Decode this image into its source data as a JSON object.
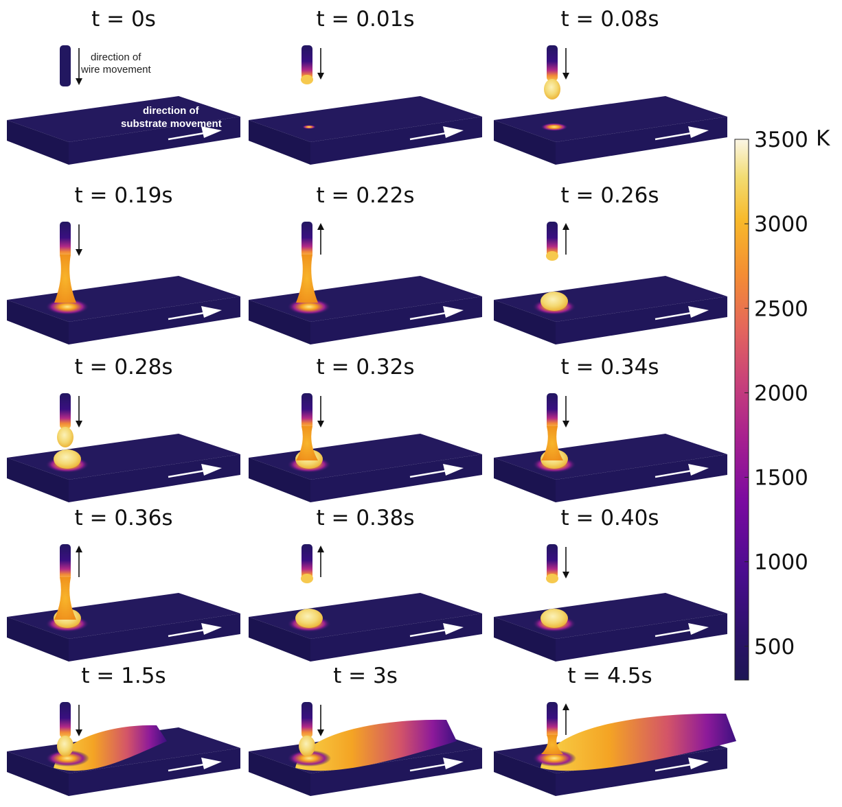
{
  "figure": {
    "colorbar": {
      "colormap": "plasma",
      "min": 300,
      "max": 3500,
      "ticks": [
        {
          "value": 3500,
          "label": "3500"
        },
        {
          "value": 3000,
          "label": "3000"
        },
        {
          "value": 2500,
          "label": "2500"
        },
        {
          "value": 2000,
          "label": "2000"
        },
        {
          "value": 1500,
          "label": "1500"
        },
        {
          "value": 1000,
          "label": "1000"
        },
        {
          "value": 500,
          "label": "500"
        }
      ],
      "unit": "K"
    },
    "annotations": {
      "wire_direction": "direction of\nwire movement",
      "wire_direction_line1": "direction of",
      "wire_direction_line2": "wire movement",
      "substrate_direction_line1": "direction of",
      "substrate_direction_line2": "substrate movement"
    },
    "panels": [
      {
        "title": "t = 0s",
        "wire_dir": "down",
        "pool": 0,
        "drop": "none",
        "bridge": false,
        "deposit": 0
      },
      {
        "title": "t = 0.01s",
        "wire_dir": "down",
        "pool": 1,
        "drop": "tip",
        "bridge": false,
        "deposit": 0
      },
      {
        "title": "t = 0.08s",
        "wire_dir": "down",
        "pool": 2,
        "drop": "hanging",
        "bridge": false,
        "deposit": 0
      },
      {
        "title": "t = 0.19s",
        "wire_dir": "down",
        "pool": 3,
        "drop": "none",
        "bridge": true,
        "deposit": 0
      },
      {
        "title": "t = 0.22s",
        "wire_dir": "up",
        "pool": 3,
        "drop": "none",
        "bridge": true,
        "deposit": 0
      },
      {
        "title": "t = 0.26s",
        "wire_dir": "up",
        "pool": 3,
        "drop": "tip",
        "bridge": false,
        "deposit": 1
      },
      {
        "title": "t = 0.28s",
        "wire_dir": "down",
        "pool": 3,
        "drop": "hanging",
        "bridge": false,
        "deposit": 1
      },
      {
        "title": "t = 0.32s",
        "wire_dir": "down",
        "pool": 3,
        "drop": "none",
        "bridge": true,
        "deposit": 1
      },
      {
        "title": "t = 0.34s",
        "wire_dir": "down",
        "pool": 3,
        "drop": "none",
        "bridge": true,
        "deposit": 1
      },
      {
        "title": "t = 0.36s",
        "wire_dir": "up",
        "pool": 3,
        "drop": "none",
        "bridge": true,
        "deposit": 1
      },
      {
        "title": "t = 0.38s",
        "wire_dir": "up",
        "pool": 3,
        "drop": "tip",
        "bridge": false,
        "deposit": 1
      },
      {
        "title": "t = 0.40s",
        "wire_dir": "down",
        "pool": 3,
        "drop": "tip",
        "bridge": false,
        "deposit": 1
      },
      {
        "title": "t = 1.5s",
        "wire_dir": "down",
        "pool": 3,
        "drop": "hanging",
        "bridge": false,
        "deposit": 2
      },
      {
        "title": "t = 3s",
        "wire_dir": "down",
        "pool": 3,
        "drop": "hanging",
        "bridge": false,
        "deposit": 3
      },
      {
        "title": "t = 4.5s",
        "wire_dir": "up",
        "pool": 3,
        "drop": "none",
        "bridge": true,
        "deposit": 4
      }
    ]
  }
}
